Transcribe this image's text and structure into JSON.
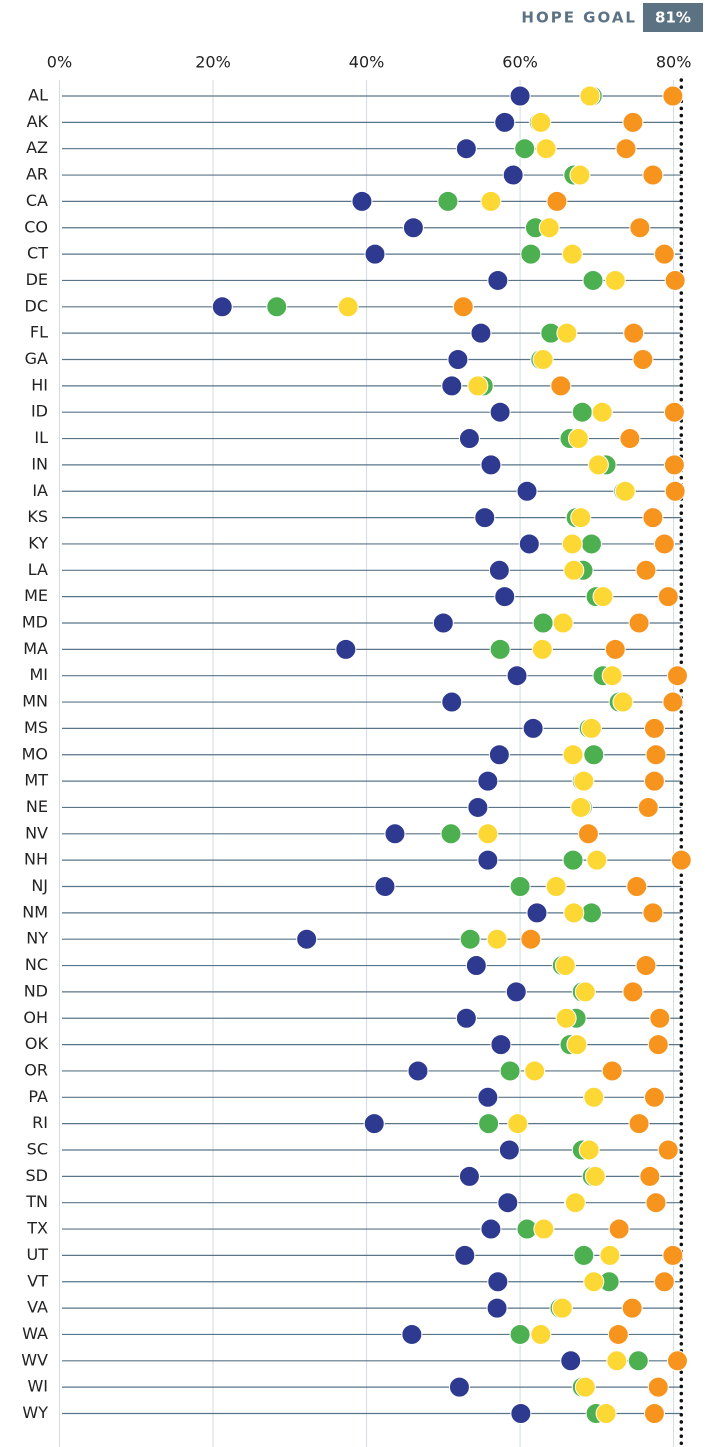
{
  "chart_data": {
    "type": "dot",
    "goal_title": "HOPE GOAL",
    "goal": {
      "value": 81,
      "label": "81%"
    },
    "goal_color": "#5b7283",
    "xlim": [
      0,
      85
    ],
    "xticks": [
      {
        "value": 0,
        "label": "0%"
      },
      {
        "value": 20,
        "label": "20%"
      },
      {
        "value": 40,
        "label": "40%"
      },
      {
        "value": 60,
        "label": "60%"
      },
      {
        "value": 80,
        "label": "80%"
      }
    ],
    "grid": true,
    "categories": [
      "AL",
      "AK",
      "AZ",
      "AR",
      "CA",
      "CO",
      "CT",
      "DE",
      "DC",
      "FL",
      "GA",
      "HI",
      "ID",
      "IL",
      "IN",
      "IA",
      "KS",
      "KY",
      "LA",
      "ME",
      "MD",
      "MA",
      "MI",
      "MN",
      "MS",
      "MO",
      "MT",
      "NE",
      "NV",
      "NH",
      "NJ",
      "NM",
      "NY",
      "NC",
      "ND",
      "OH",
      "OK",
      "OR",
      "PA",
      "RI",
      "SC",
      "SD",
      "TN",
      "TX",
      "UT",
      "VT",
      "VA",
      "WA",
      "WV",
      "WI",
      "WY"
    ],
    "series": [
      {
        "color": "#2e3a8f",
        "values": [
          60,
          58,
          53,
          59.1,
          39.4,
          46.1,
          41.1,
          57.1,
          21.2,
          54.9,
          51.9,
          51.1,
          57.4,
          53.4,
          56.2,
          60.9,
          55.4,
          61.2,
          57.3,
          58,
          50,
          37.3,
          59.6,
          51.1,
          61.7,
          57.3,
          55.8,
          54.5,
          43.7,
          55.8,
          42.4,
          62.2,
          32.2,
          54.3,
          59.5,
          53,
          57.5,
          46.7,
          55.8,
          41,
          58.6,
          53.4,
          58.4,
          56.2,
          52.8,
          57.1,
          57,
          45.9,
          66.6,
          52.1,
          60.1
        ]
      },
      {
        "color": "#4caf50",
        "values": [
          69.4,
          62.5,
          60.6,
          67,
          50.6,
          62,
          61.4,
          69.5,
          28.3,
          64,
          62.7,
          55.2,
          68.1,
          66.5,
          71.2,
          73.5,
          67.3,
          69.3,
          68.2,
          69.9,
          63,
          57.4,
          70.8,
          72.9,
          69,
          69.6,
          68.1,
          68.1,
          51,
          66.9,
          60,
          69.3,
          53.5,
          65.5,
          68.1,
          67.3,
          66.5,
          58.7,
          69.6,
          55.9,
          68.1,
          69.4,
          67.1,
          60.9,
          68.3,
          71.6,
          65.2,
          60,
          75.4,
          68.1,
          69.9
        ]
      },
      {
        "color": "#fdd835",
        "values": [
          69.1,
          62.7,
          63.4,
          67.8,
          56.2,
          63.8,
          66.8,
          72.4,
          37.6,
          66.1,
          63,
          54.5,
          70.7,
          67.6,
          70.2,
          73.7,
          67.9,
          66.8,
          67,
          70.8,
          65.6,
          62.9,
          72,
          73.4,
          69.3,
          66.9,
          68.3,
          67.9,
          55.8,
          70,
          64.7,
          67,
          57,
          65.9,
          68.5,
          66,
          67.4,
          61.9,
          69.6,
          59.7,
          69,
          69.8,
          67.2,
          63.1,
          71.7,
          69.6,
          65.5,
          62.7,
          72.6,
          68.5,
          71.2
        ]
      },
      {
        "color": "#f7941d",
        "values": [
          79.9,
          74.7,
          73.8,
          77.3,
          64.8,
          75.6,
          78.8,
          80.2,
          52.6,
          74.8,
          76,
          65.3,
          80.1,
          74.3,
          80.1,
          80.2,
          77.3,
          78.8,
          76.4,
          79.3,
          75.5,
          72.4,
          80.5,
          79.9,
          77.5,
          77.7,
          77.5,
          76.7,
          68.9,
          81,
          75.2,
          77.3,
          61.4,
          76.4,
          74.7,
          78.2,
          78,
          72,
          77.5,
          75.5,
          79.3,
          76.9,
          77.7,
          72.9,
          79.9,
          78.8,
          74.6,
          72.8,
          80.5,
          78,
          77.5
        ]
      }
    ]
  }
}
